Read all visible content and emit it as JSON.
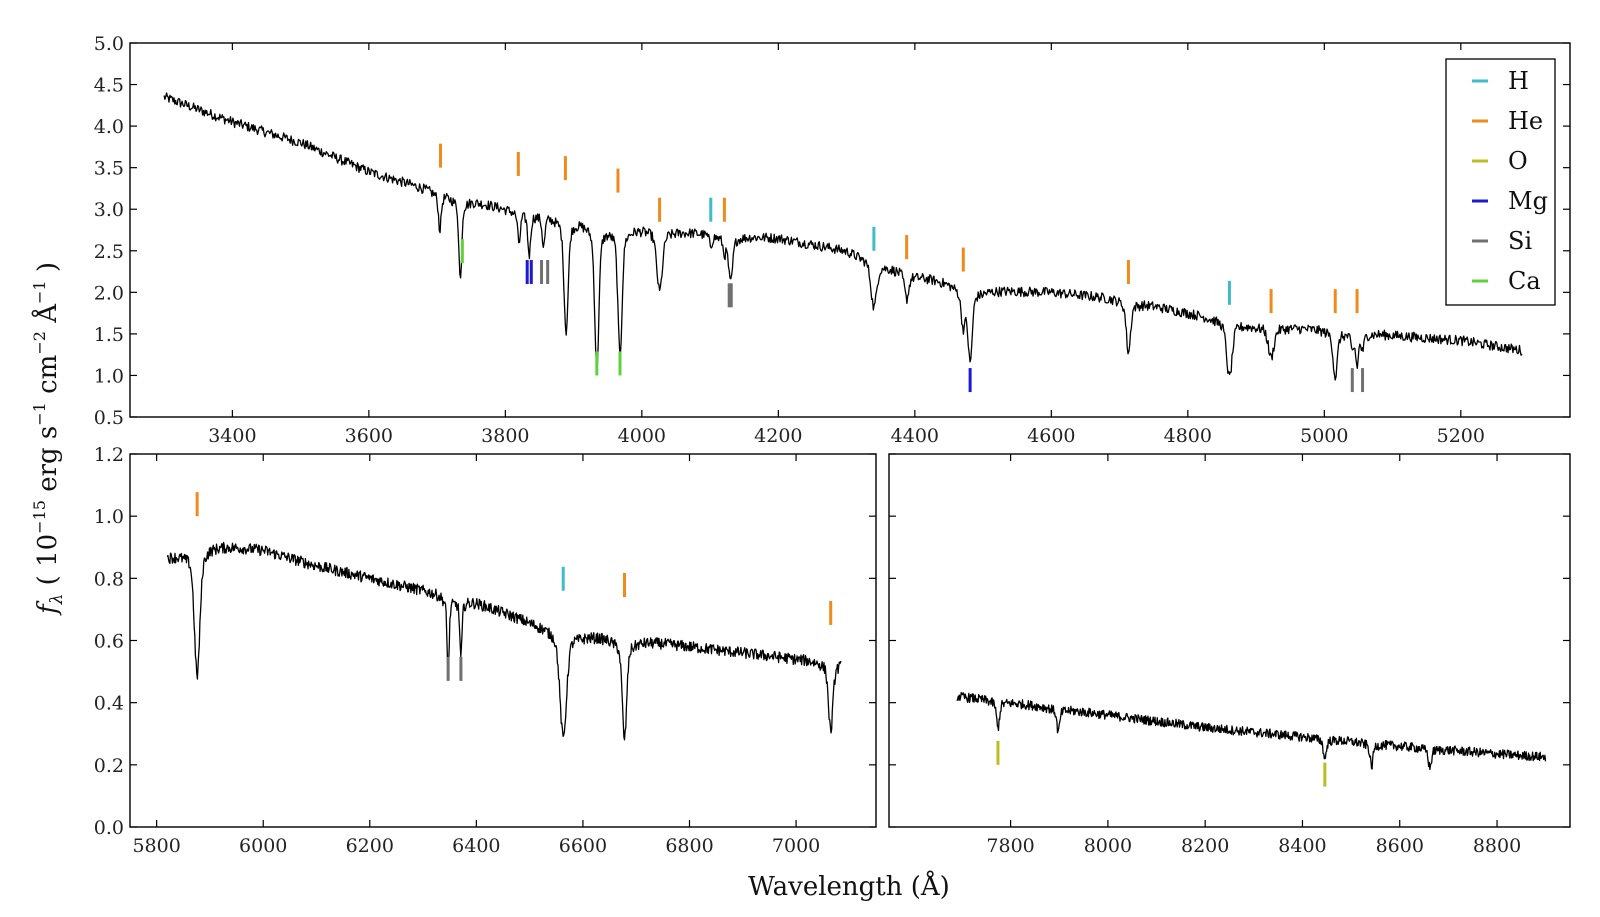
{
  "chart_data": [
    {
      "type": "line",
      "panel": "top",
      "xlim": [
        3250,
        5360
      ],
      "ylim": [
        0.5,
        5.0
      ],
      "xticks": [
        3400,
        3600,
        3800,
        4000,
        4200,
        4400,
        4600,
        4800,
        5000,
        5200
      ],
      "xtick_labels": [
        "3400",
        "3600",
        "3800",
        "4000",
        "4200",
        "4400",
        "4600",
        "4800",
        "5000",
        "5200"
      ],
      "yticks": [
        0.5,
        1.0,
        1.5,
        2.0,
        2.5,
        3.0,
        3.5,
        4.0,
        4.5,
        5.0
      ],
      "ytick_labels": [
        "0.5",
        "1.0",
        "1.5",
        "2.0",
        "2.5",
        "3.0",
        "3.5",
        "4.0",
        "4.5",
        "5.0"
      ],
      "grid": false,
      "legend_position": "top-right",
      "series": [
        {
          "continuum": [
            [
              3300,
              4.35
            ],
            [
              3400,
              4.05
            ],
            [
              3500,
              3.8
            ],
            [
              3600,
              3.45
            ],
            [
              3700,
              3.2
            ],
            [
              3800,
              3.0
            ],
            [
              3900,
              2.9
            ],
            [
              4000,
              2.78
            ],
            [
              4100,
              2.7
            ],
            [
              4200,
              2.65
            ],
            [
              4300,
              2.5
            ],
            [
              4400,
              2.2
            ],
            [
              4500,
              2.02
            ],
            [
              4600,
              2.0
            ],
            [
              4700,
              1.92
            ],
            [
              4800,
              1.75
            ],
            [
              4900,
              1.6
            ],
            [
              5000,
              1.55
            ],
            [
              5100,
              1.48
            ],
            [
              5200,
              1.42
            ],
            [
              5290,
              1.3
            ]
          ],
          "absorption_lines": [
            [
              3704,
              0.35,
              2
            ],
            [
              3734,
              0.8,
              2
            ],
            [
              3820,
              0.3,
              2
            ],
            [
              3835,
              0.4,
              2
            ],
            [
              3856,
              0.3,
              2
            ],
            [
              3889,
              1.1,
              3
            ],
            [
              3934,
              1.4,
              3
            ],
            [
              3968,
              1.25,
              3
            ],
            [
              4026,
              0.6,
              4
            ],
            [
              4101,
              0.1,
              2
            ],
            [
              4121,
              0.15,
              2
            ],
            [
              4130,
              0.45,
              3
            ],
            [
              4340,
              0.45,
              4
            ],
            [
              4388,
              0.25,
              3
            ],
            [
              4471,
              0.35,
              3
            ],
            [
              4481,
              0.7,
              3
            ],
            [
              4713,
              0.5,
              3
            ],
            [
              4861,
              0.55,
              4
            ],
            [
              4922,
              0.3,
              4
            ],
            [
              5016,
              0.45,
              3
            ],
            [
              5041,
              0.15,
              2
            ],
            [
              5048,
              0.3,
              2
            ],
            [
              5056,
              0.15,
              2
            ]
          ],
          "x_range": [
            3300,
            5290
          ],
          "noise": 0.06
        }
      ],
      "line_markers": [
        {
          "element": "He",
          "x": 3705,
          "y": 3.5,
          "side": "above"
        },
        {
          "element": "Ca",
          "x": 3737,
          "y": 2.35,
          "side": "below"
        },
        {
          "element": "He",
          "x": 3819,
          "y": 3.4,
          "side": "above"
        },
        {
          "element": "Mg",
          "x": 3832,
          "y": 2.1,
          "side": "below"
        },
        {
          "element": "Mg",
          "x": 3838,
          "y": 2.1,
          "side": "below"
        },
        {
          "element": "Si",
          "x": 3853,
          "y": 2.1,
          "side": "below"
        },
        {
          "element": "Si",
          "x": 3862,
          "y": 2.1,
          "side": "below"
        },
        {
          "element": "He",
          "x": 3888,
          "y": 3.35,
          "side": "above"
        },
        {
          "element": "Ca",
          "x": 3934,
          "y": 1.0,
          "side": "below"
        },
        {
          "element": "He",
          "x": 3965,
          "y": 3.2,
          "side": "above"
        },
        {
          "element": "Ca",
          "x": 3968,
          "y": 1.0,
          "side": "below"
        },
        {
          "element": "He",
          "x": 4026,
          "y": 2.85,
          "side": "above"
        },
        {
          "element": "H",
          "x": 4101,
          "y": 2.85,
          "side": "above"
        },
        {
          "element": "He",
          "x": 4121,
          "y": 2.85,
          "side": "above"
        },
        {
          "element": "Si",
          "x": 4128,
          "y": 1.82,
          "side": "below"
        },
        {
          "element": "Si",
          "x": 4131,
          "y": 1.82,
          "side": "below"
        },
        {
          "element": "H",
          "x": 4340,
          "y": 2.5,
          "side": "above"
        },
        {
          "element": "He",
          "x": 4388,
          "y": 2.4,
          "side": "above"
        },
        {
          "element": "He",
          "x": 4471,
          "y": 2.25,
          "side": "above"
        },
        {
          "element": "Mg",
          "x": 4481,
          "y": 0.8,
          "side": "below"
        },
        {
          "element": "He",
          "x": 4713,
          "y": 2.1,
          "side": "above"
        },
        {
          "element": "H",
          "x": 4861,
          "y": 1.85,
          "side": "above"
        },
        {
          "element": "He",
          "x": 4922,
          "y": 1.75,
          "side": "above"
        },
        {
          "element": "He",
          "x": 5016,
          "y": 1.75,
          "side": "above"
        },
        {
          "element": "Si",
          "x": 5041,
          "y": 0.8,
          "side": "below"
        },
        {
          "element": "He",
          "x": 5048,
          "y": 1.75,
          "side": "above"
        },
        {
          "element": "Si",
          "x": 5056,
          "y": 0.8,
          "side": "below"
        }
      ]
    },
    {
      "type": "line",
      "panel": "bottom-left",
      "xlim": [
        5750,
        7150
      ],
      "ylim": [
        0.0,
        1.2
      ],
      "xticks": [
        5800,
        6000,
        6200,
        6400,
        6600,
        6800,
        7000
      ],
      "xtick_labels": [
        "5800",
        "6000",
        "6200",
        "6400",
        "6600",
        "6800",
        "7000"
      ],
      "yticks": [
        0.0,
        0.2,
        0.4,
        0.6,
        0.8,
        1.0,
        1.2
      ],
      "ytick_labels": [
        "0.0",
        "0.2",
        "0.4",
        "0.6",
        "0.8",
        "1.0",
        "1.2"
      ],
      "grid": false,
      "series": [
        {
          "continuum": [
            [
              5820,
              0.87
            ],
            [
              5900,
              0.91
            ],
            [
              6000,
              0.89
            ],
            [
              6100,
              0.84
            ],
            [
              6200,
              0.8
            ],
            [
              6300,
              0.76
            ],
            [
              6400,
              0.72
            ],
            [
              6500,
              0.66
            ],
            [
              6600,
              0.62
            ],
            [
              6700,
              0.6
            ],
            [
              6800,
              0.58
            ],
            [
              6900,
              0.56
            ],
            [
              7000,
              0.54
            ],
            [
              7085,
              0.53
            ]
          ],
          "absorption_lines": [
            [
              5876,
              0.33,
              5
            ],
            [
              6347,
              0.2,
              2
            ],
            [
              6371,
              0.15,
              2
            ],
            [
              6563,
              0.28,
              6
            ],
            [
              6678,
              0.26,
              4
            ],
            [
              7065,
              0.18,
              4
            ]
          ],
          "x_range": [
            5820,
            7085
          ],
          "noise": 0.018
        }
      ],
      "line_markers": [
        {
          "element": "He",
          "x": 5876,
          "y": 1.0,
          "side": "above"
        },
        {
          "element": "Si",
          "x": 6347,
          "y": 0.47,
          "side": "below"
        },
        {
          "element": "Si",
          "x": 6371,
          "y": 0.47,
          "side": "below"
        },
        {
          "element": "H",
          "x": 6563,
          "y": 0.76,
          "side": "above"
        },
        {
          "element": "He",
          "x": 6678,
          "y": 0.74,
          "side": "above"
        },
        {
          "element": "He",
          "x": 7065,
          "y": 0.65,
          "side": "above"
        }
      ]
    },
    {
      "type": "line",
      "panel": "bottom-right",
      "xlim": [
        7550,
        8950
      ],
      "ylim": [
        0.0,
        1.2
      ],
      "xticks": [
        7800,
        8000,
        8200,
        8400,
        8600,
        8800
      ],
      "xtick_labels": [
        "7800",
        "8000",
        "8200",
        "8400",
        "8600",
        "8800"
      ],
      "grid": false,
      "series": [
        {
          "continuum": [
            [
              7690,
              0.42
            ],
            [
              7800,
              0.4
            ],
            [
              8000,
              0.36
            ],
            [
              8200,
              0.32
            ],
            [
              8400,
              0.29
            ],
            [
              8600,
              0.26
            ],
            [
              8800,
              0.235
            ],
            [
              8900,
              0.225
            ]
          ],
          "absorption_lines": [
            [
              7774,
              0.07,
              3
            ],
            [
              7898,
              0.06,
              3
            ],
            [
              8446,
              0.05,
              3
            ],
            [
              8542,
              0.06,
              3
            ],
            [
              8662,
              0.05,
              3
            ]
          ],
          "x_range": [
            7690,
            8900
          ],
          "noise": 0.015
        }
      ],
      "line_markers": [
        {
          "element": "O",
          "x": 7774,
          "y": 0.2,
          "side": "below"
        },
        {
          "element": "O",
          "x": 8446,
          "y": 0.13,
          "side": "below"
        }
      ]
    }
  ],
  "legend": {
    "items": [
      {
        "label": "H",
        "color": "#3fbccb"
      },
      {
        "label": "He",
        "color": "#f08a1c"
      },
      {
        "label": "O",
        "color": "#bcbd22"
      },
      {
        "label": "Mg",
        "color": "#1a1ad6"
      },
      {
        "label": "Si",
        "color": "#707070"
      },
      {
        "label": "Ca",
        "color": "#5fd13c"
      }
    ]
  },
  "axes": {
    "xlabel": "Wavelength (Å)",
    "ylabel_symbol": "f",
    "ylabel_subscript": "λ",
    "ylabel_open": " ( 10",
    "ylabel_exp1": "−15",
    "ylabel_mid1": " erg s",
    "ylabel_exp2": "−1",
    "ylabel_mid2": " cm",
    "ylabel_exp3": "−2",
    "ylabel_mid3": " Å",
    "ylabel_exp4": "−1",
    "ylabel_close": " )"
  }
}
